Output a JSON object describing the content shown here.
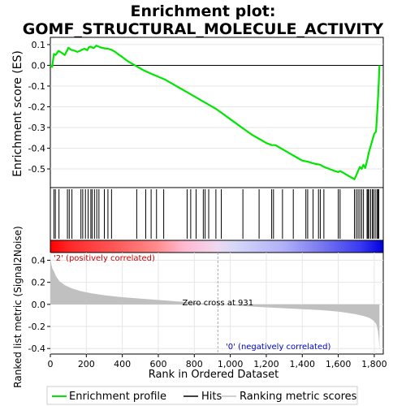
{
  "title_line1": "Enrichment plot:",
  "title_line2": "GOMF_STRUCTURAL_MOLECULE_ACTIVITY",
  "colors": {
    "enrichment": "#00e600",
    "hits": "#000000",
    "metric_fill": "#c0c0c0",
    "pos_label": "#cc0000",
    "neg_label": "#0000cc"
  },
  "chart_data": {
    "type": "line",
    "panels": [
      {
        "name": "enrichment-score",
        "ylabel": "Enrichment score (ES)",
        "xlim": [
          0,
          1850
        ],
        "ylim": [
          -0.59,
          0.135
        ],
        "yticks": [
          0.1,
          0.0,
          -0.1,
          -0.2,
          -0.3,
          -0.4,
          -0.5
        ],
        "ytick_labels": [
          "0.1",
          "0.0",
          "-0.1",
          "-0.2",
          "-0.3",
          "-0.4",
          "-0.5"
        ],
        "series": [
          {
            "name": "Enrichment profile",
            "x": [
              0,
              10,
              20,
              30,
              45,
              60,
              80,
              95,
              100,
              115,
              130,
              150,
              165,
              175,
              190,
              205,
              215,
              225,
              240,
              255,
              270,
              285,
              300,
              320,
              340,
              360,
              380,
              400,
              430,
              460,
              490,
              520,
              560,
              600,
              640,
              680,
              720,
              760,
              800,
              840,
              880,
              920,
              960,
              1000,
              1040,
              1080,
              1120,
              1160,
              1200,
              1230,
              1250,
              1280,
              1300,
              1330,
              1370,
              1400,
              1430,
              1450,
              1470,
              1490,
              1500,
              1520,
              1550,
              1580,
              1600,
              1610,
              1630,
              1660,
              1680,
              1690,
              1700,
              1710,
              1720,
              1730,
              1740,
              1750,
              1760,
              1770,
              1780,
              1790,
              1800,
              1810,
              1815,
              1820,
              1825,
              1829
            ],
            "y": [
              0.0,
              -0.008,
              0.055,
              0.05,
              0.07,
              0.062,
              0.05,
              0.075,
              0.085,
              0.075,
              0.072,
              0.065,
              0.07,
              0.075,
              0.08,
              0.073,
              0.088,
              0.09,
              0.083,
              0.095,
              0.09,
              0.085,
              0.082,
              0.08,
              0.075,
              0.065,
              0.052,
              0.04,
              0.02,
              0.005,
              -0.01,
              -0.025,
              -0.04,
              -0.055,
              -0.07,
              -0.09,
              -0.11,
              -0.13,
              -0.15,
              -0.17,
              -0.19,
              -0.21,
              -0.235,
              -0.26,
              -0.285,
              -0.31,
              -0.335,
              -0.355,
              -0.375,
              -0.385,
              -0.385,
              -0.4,
              -0.41,
              -0.425,
              -0.445,
              -0.46,
              -0.465,
              -0.47,
              -0.475,
              -0.478,
              -0.48,
              -0.49,
              -0.5,
              -0.51,
              -0.515,
              -0.51,
              -0.52,
              -0.535,
              -0.545,
              -0.55,
              -0.53,
              -0.51,
              -0.49,
              -0.5,
              -0.48,
              -0.495,
              -0.46,
              -0.42,
              -0.39,
              -0.36,
              -0.33,
              -0.32,
              -0.25,
              -0.17,
              -0.08,
              0.0
            ]
          }
        ]
      },
      {
        "name": "hits",
        "legend_name": "Hits",
        "hit_positions": [
          20,
          28,
          48,
          95,
          105,
          120,
          170,
          180,
          195,
          210,
          225,
          232,
          245,
          258,
          270,
          300,
          320,
          340,
          480,
          530,
          560,
          590,
          630,
          760,
          780,
          810,
          850,
          860,
          880,
          920,
          950,
          1070,
          1160,
          1230,
          1240,
          1290,
          1350,
          1420,
          1430,
          1460,
          1490,
          1500,
          1520,
          1600,
          1610,
          1690,
          1700,
          1710,
          1720,
          1730,
          1740,
          1760,
          1765,
          1770,
          1780,
          1790,
          1795,
          1805,
          1815,
          1820,
          1825
        ]
      },
      {
        "name": "ranking-metric",
        "legend_name": "Ranking metric scores",
        "ylabel": "Ranked list metric (Signal2Noise)",
        "xlabel": "Rank in Ordered Dataset",
        "xlim": [
          0,
          1850
        ],
        "ylim": [
          -0.45,
          0.47
        ],
        "xticks": [
          0,
          200,
          400,
          600,
          800,
          1000,
          1200,
          1400,
          1600,
          1800
        ],
        "xtick_labels": [
          "0",
          "200",
          "400",
          "600",
          "800",
          "1,000",
          "1,200",
          "1,400",
          "1,600",
          "1,800"
        ],
        "yticks": [
          0.4,
          0.2,
          0.0,
          -0.2,
          -0.4
        ],
        "ytick_labels": [
          "0.4",
          "0.2",
          "0.0",
          "-0.2",
          "-0.4"
        ],
        "x": [
          0,
          5,
          10,
          20,
          30,
          50,
          80,
          120,
          170,
          230,
          300,
          400,
          500,
          600,
          700,
          800,
          900,
          931,
          1000,
          1100,
          1200,
          1300,
          1400,
          1500,
          1550,
          1600,
          1650,
          1700,
          1740,
          1770,
          1790,
          1800,
          1810,
          1815,
          1820,
          1825,
          1829
        ],
        "y": [
          0.42,
          0.37,
          0.33,
          0.3,
          0.26,
          0.21,
          0.175,
          0.145,
          0.12,
          0.1,
          0.083,
          0.065,
          0.052,
          0.04,
          0.028,
          0.016,
          0.004,
          0.0,
          -0.008,
          -0.018,
          -0.027,
          -0.035,
          -0.043,
          -0.052,
          -0.058,
          -0.066,
          -0.076,
          -0.09,
          -0.105,
          -0.12,
          -0.14,
          -0.155,
          -0.175,
          -0.2,
          -0.24,
          -0.31,
          -0.42
        ]
      }
    ],
    "annotations": {
      "pos_label": "'2' (positively correlated)",
      "neg_label": "'0' (negatively correlated)",
      "zero_cross": "Zero cross at 931",
      "zero_cross_x": 931
    },
    "legend": [
      "Enrichment profile",
      "Hits",
      "Ranking metric scores"
    ],
    "legend_placement": "bottom",
    "grid": true
  }
}
